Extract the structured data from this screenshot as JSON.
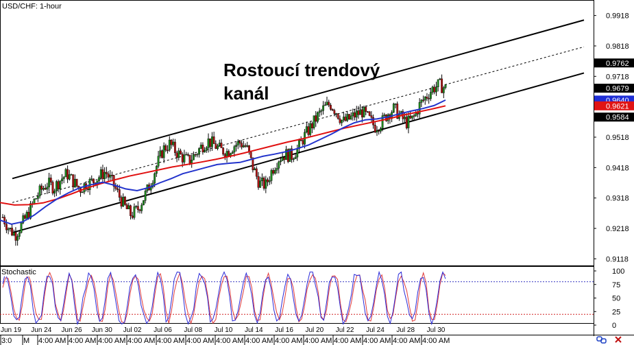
{
  "symbol_label": "USD/CHF: 1-hour",
  "annotation": "Rostoucí trendový\nkanál",
  "price_axis": {
    "ticks": [
      "0.9918",
      "0.9818",
      "0.9718",
      "0.9618",
      "0.9518",
      "0.9418",
      "0.9318",
      "0.9218",
      "0.9118"
    ],
    "tick_values": [
      0.9918,
      0.9818,
      0.9718,
      0.9618,
      0.9518,
      0.9418,
      0.9318,
      0.9218,
      0.9118
    ],
    "ylim": [
      0.9103,
      0.996
    ]
  },
  "price_markers": [
    {
      "label": "0.9762",
      "value": 0.9762,
      "bg": "#000000",
      "fg": "#ffffff"
    },
    {
      "label": "0.9679",
      "value": 0.9679,
      "bg": "#000000",
      "fg": "#ffffff"
    },
    {
      "label": "0.9640",
      "value": 0.964,
      "bg": "#1f2fd6",
      "fg": "#ffffff"
    },
    {
      "label": "0.9621",
      "value": 0.9621,
      "bg": "#e01414",
      "fg": "#ffffff"
    },
    {
      "label": "0.9584",
      "value": 0.9584,
      "bg": "#000000",
      "fg": "#ffffff"
    }
  ],
  "stochastic": {
    "label": "Stochastic",
    "ticks": [
      "100",
      "75",
      "50",
      "25",
      "0"
    ],
    "tick_values": [
      100,
      75,
      50,
      25,
      0
    ],
    "levels": [
      80,
      20
    ],
    "colors": {
      "k": "#2a2ad8",
      "d": "#e03a3a",
      "upper": "#3030c0",
      "lower": "#d02020"
    }
  },
  "date_axis": [
    "Jun 19",
    "Jun 24",
    "Jun 26",
    "Jun 30",
    "Jul 02",
    "Jul 06",
    "Jul 08",
    "Jul 10",
    "Jul 14",
    "Jul 16",
    "Jul 20",
    "Jul 22",
    "Jul 24",
    "Jul 28",
    "Jul 30"
  ],
  "time_axis": [
    "3:0",
    "M",
    "4:00 AM",
    "4:00 AM",
    "4:00 AM",
    "4:00 AM",
    "4:00 AM",
    "4:00 AM",
    "4:00 AM",
    "4:00 AM",
    "4:00 AM",
    "4:00 AM",
    "4:00 AM",
    "4:00 AM",
    "4:00 AM",
    "4:00 AM"
  ],
  "icons": [
    "link-icon",
    "close-icon"
  ],
  "colors": {
    "up": "#1e8a1e",
    "down": "#b01212",
    "ma_fast": "#2233cc",
    "ma_slow": "#e01010",
    "channel": "#000000"
  },
  "chart_data": {
    "type": "line",
    "title": "USD/CHF: 1-hour",
    "channel": {
      "upper": {
        "from": 0.9382,
        "to": 0.9903
      },
      "middle": {
        "from": 0.9303,
        "to": 0.9815
      },
      "lower": {
        "from": 0.9204,
        "to": 0.9729
      }
    },
    "close_path": [
      0.9255,
      0.9215,
      0.9198,
      0.9232,
      0.9268,
      0.9312,
      0.9345,
      0.9366,
      0.9352,
      0.9378,
      0.9398,
      0.9372,
      0.9346,
      0.9365,
      0.9372,
      0.9388,
      0.9405,
      0.9372,
      0.933,
      0.929,
      0.9262,
      0.928,
      0.932,
      0.9365,
      0.9425,
      0.9478,
      0.9496,
      0.947,
      0.9452,
      0.944,
      0.9462,
      0.9488,
      0.9506,
      0.9492,
      0.9475,
      0.947,
      0.949,
      0.95,
      0.9485,
      0.9418,
      0.9366,
      0.936,
      0.9412,
      0.9448,
      0.9462,
      0.9456,
      0.948,
      0.9521,
      0.9552,
      0.9585,
      0.9612,
      0.9628,
      0.9602,
      0.9568,
      0.9578,
      0.9592,
      0.9602,
      0.958,
      0.9552,
      0.9565,
      0.9596,
      0.9612,
      0.9585,
      0.9565,
      0.958,
      0.9625,
      0.9652,
      0.9678,
      0.969,
      0.9679
    ],
    "ma_fast": [
      0.9245,
      0.9232,
      0.924,
      0.9262,
      0.929,
      0.9315,
      0.9335,
      0.9352,
      0.9362,
      0.937,
      0.936,
      0.9348,
      0.9342,
      0.9352,
      0.9368,
      0.9382,
      0.9398,
      0.9408,
      0.9418,
      0.9428,
      0.9432,
      0.9435,
      0.9445,
      0.9455,
      0.9462,
      0.947,
      0.948,
      0.9492,
      0.951,
      0.9528,
      0.9548,
      0.9565,
      0.9575,
      0.9578,
      0.9585,
      0.9595,
      0.9604,
      0.9612,
      0.9622,
      0.964
    ],
    "ma_slow": [
      0.9303,
      0.9295,
      0.9296,
      0.9302,
      0.9315,
      0.9332,
      0.935,
      0.9365,
      0.9378,
      0.939,
      0.94,
      0.941,
      0.942,
      0.9428,
      0.9436,
      0.9445,
      0.9455,
      0.9466,
      0.9478,
      0.949,
      0.9502,
      0.9512,
      0.9524,
      0.9536,
      0.9548,
      0.9558,
      0.9568,
      0.9578,
      0.959,
      0.96,
      0.961,
      0.9621
    ]
  }
}
